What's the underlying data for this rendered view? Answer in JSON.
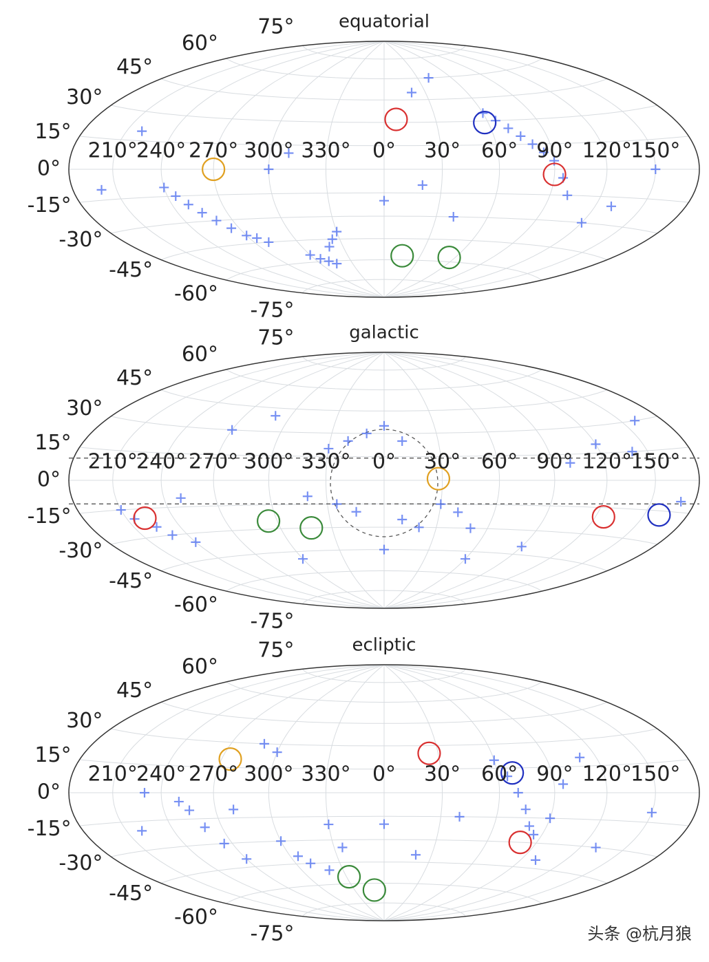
{
  "chart_data": [
    {
      "type": "scatter",
      "projection": "hammer",
      "title": "equatorial",
      "grid": true,
      "xticks": [
        {
          "value": 210,
          "label": "210°"
        },
        {
          "value": 240,
          "label": "240°"
        },
        {
          "value": 270,
          "label": "270°"
        },
        {
          "value": 300,
          "label": "300°"
        },
        {
          "value": 330,
          "label": "330°"
        },
        {
          "value": 0,
          "label": "0°"
        },
        {
          "value": 30,
          "label": "30°"
        },
        {
          "value": 60,
          "label": "60°"
        },
        {
          "value": 90,
          "label": "90°"
        },
        {
          "value": 120,
          "label": "120°"
        },
        {
          "value": 150,
          "label": "150°"
        }
      ],
      "yticks": [
        {
          "value": -75,
          "label": "-75°"
        },
        {
          "value": -60,
          "label": "-60°"
        },
        {
          "value": -45,
          "label": "-45°"
        },
        {
          "value": -30,
          "label": "-30°"
        },
        {
          "value": -15,
          "label": "-15°"
        },
        {
          "value": 0,
          "label": "0°"
        },
        {
          "value": 15,
          "label": "15°"
        },
        {
          "value": 30,
          "label": "30°"
        },
        {
          "value": 45,
          "label": "45°"
        },
        {
          "value": 60,
          "label": "60°"
        },
        {
          "value": 75,
          "label": "75°"
        }
      ],
      "series": [
        {
          "color": "#4a6cf0",
          "marker": "+",
          "x": [
            240,
            245,
            250,
            255,
            260,
            265,
            270,
            275,
            280,
            300,
            305,
            310,
            315,
            320,
            325,
            330,
            60,
            65,
            70,
            75,
            80,
            85,
            90,
            95,
            100,
            0,
            20,
            40,
            120,
            130,
            150,
            300,
            310,
            20,
            40,
            200,
            220
          ],
          "values": [
            -10,
            -15,
            -20,
            -25,
            -30,
            -35,
            -40,
            -42,
            -45,
            -55,
            -58,
            -60,
            -62,
            -50,
            -45,
            -40,
            35,
            30,
            25,
            20,
            15,
            10,
            5,
            -5,
            -15,
            -20,
            -10,
            -30,
            -30,
            -20,
            0,
            0,
            10,
            50,
            60,
            -10,
            20
          ]
        },
        {
          "color": "#d93030",
          "marker": "o",
          "x": [
            7,
            90
          ],
          "values": [
            32,
            -3
          ]
        },
        {
          "color": "#2030c0",
          "marker": "o",
          "x": [
            58
          ],
          "values": [
            29
          ]
        },
        {
          "color": "#e0a020",
          "marker": "o",
          "x": [
            270
          ],
          "values": [
            0
          ]
        },
        {
          "color": "#3a8a3a",
          "marker": "o",
          "x": [
            15,
            55
          ],
          "values": [
            -57,
            -57
          ]
        }
      ]
    },
    {
      "type": "scatter",
      "projection": "hammer",
      "title": "galactic",
      "grid": true,
      "xticks": [
        {
          "value": 210,
          "label": "210°"
        },
        {
          "value": 240,
          "label": "240°"
        },
        {
          "value": 270,
          "label": "270°"
        },
        {
          "value": 300,
          "label": "300°"
        },
        {
          "value": 330,
          "label": "330°"
        },
        {
          "value": 0,
          "label": "0°"
        },
        {
          "value": 30,
          "label": "30°"
        },
        {
          "value": 60,
          "label": "60°"
        },
        {
          "value": 90,
          "label": "90°"
        },
        {
          "value": 120,
          "label": "120°"
        },
        {
          "value": 150,
          "label": "150°"
        }
      ],
      "yticks": [
        {
          "value": -75,
          "label": "-75°"
        },
        {
          "value": -60,
          "label": "-60°"
        },
        {
          "value": -45,
          "label": "-45°"
        },
        {
          "value": -30,
          "label": "-30°"
        },
        {
          "value": -15,
          "label": "-15°"
        },
        {
          "value": 0,
          "label": "0°"
        },
        {
          "value": 15,
          "label": "15°"
        },
        {
          "value": 30,
          "label": "30°"
        },
        {
          "value": 45,
          "label": "45°"
        },
        {
          "value": 60,
          "label": "60°"
        },
        {
          "value": 75,
          "label": "75°"
        }
      ],
      "series": [
        {
          "color": "#4a6cf0",
          "marker": "+",
          "x": [
            330,
            340,
            350,
            0,
            10,
            320,
            335,
            345,
            10,
            20,
            30,
            40,
            50,
            210,
            215,
            225,
            230,
            240,
            250,
            270,
            290,
            100,
            120,
            140,
            160,
            170,
            90,
            60,
            300,
            0
          ],
          "values": [
            20,
            25,
            30,
            35,
            25,
            -10,
            -15,
            -20,
            -25,
            -30,
            -15,
            -20,
            -30,
            -15,
            -20,
            -25,
            -30,
            -35,
            -10,
            30,
            40,
            10,
            20,
            15,
            30,
            -10,
            -40,
            -50,
            -50,
            -45
          ]
        },
        {
          "color": "#e0a020",
          "marker": "o",
          "x": [
            28
          ],
          "values": [
            1
          ]
        },
        {
          "color": "#d93030",
          "marker": "o",
          "x": [
            125,
            222
          ],
          "values": [
            -20,
            -20
          ]
        },
        {
          "color": "#2030c0",
          "marker": "o",
          "x": [
            160
          ],
          "values": [
            -17
          ]
        },
        {
          "color": "#3a8a3a",
          "marker": "o",
          "x": [
            295,
            318
          ],
          "values": [
            -25,
            -30
          ]
        }
      ]
    },
    {
      "type": "scatter",
      "projection": "hammer",
      "title": "ecliptic",
      "grid": true,
      "xticks": [
        {
          "value": 210,
          "label": "210°"
        },
        {
          "value": 240,
          "label": "240°"
        },
        {
          "value": 270,
          "label": "270°"
        },
        {
          "value": 300,
          "label": "300°"
        },
        {
          "value": 330,
          "label": "330°"
        },
        {
          "value": 0,
          "label": "0°"
        },
        {
          "value": 30,
          "label": "30°"
        },
        {
          "value": 60,
          "label": "60°"
        },
        {
          "value": 90,
          "label": "90°"
        },
        {
          "value": 120,
          "label": "120°"
        },
        {
          "value": 150,
          "label": "150°"
        }
      ],
      "yticks": [
        {
          "value": -75,
          "label": "-75°"
        },
        {
          "value": -60,
          "label": "-60°"
        },
        {
          "value": -45,
          "label": "-45°"
        },
        {
          "value": -30,
          "label": "-30°"
        },
        {
          "value": -15,
          "label": "-15°"
        },
        {
          "value": 0,
          "label": "0°"
        },
        {
          "value": 15,
          "label": "15°"
        },
        {
          "value": 30,
          "label": "30°"
        },
        {
          "value": 45,
          "label": "45°"
        },
        {
          "value": 60,
          "label": "60°"
        },
        {
          "value": 75,
          "label": "75°"
        }
      ],
      "series": [
        {
          "color": "#4a6cf0",
          "marker": "+",
          "x": [
            250,
            255,
            260,
            265,
            270,
            280,
            300,
            305,
            310,
            320,
            330,
            335,
            60,
            65,
            70,
            75,
            80,
            85,
            90,
            95,
            100,
            110,
            130,
            150,
            0,
            20,
            40,
            290,
            300,
            230,
            220
          ],
          "values": [
            -5,
            -10,
            -20,
            -30,
            -40,
            -10,
            -30,
            -40,
            -45,
            -50,
            -20,
            -35,
            20,
            10,
            0,
            -10,
            -20,
            -25,
            -15,
            5,
            -40,
            20,
            -30,
            -10,
            -20,
            -40,
            -15,
            30,
            25,
            0,
            -20
          ]
        },
        {
          "color": "#d93030",
          "marker": "o",
          "x": [
            25,
            80
          ],
          "values": [
            25,
            -30
          ]
        },
        {
          "color": "#e0a020",
          "marker": "o",
          "x": [
            275
          ],
          "values": [
            20
          ]
        },
        {
          "color": "#2030c0",
          "marker": "o",
          "x": [
            68
          ],
          "values": [
            12
          ]
        },
        {
          "color": "#3a8a3a",
          "marker": "o",
          "x": [
            332,
            350
          ],
          "values": [
            -55,
            -65
          ]
        }
      ]
    }
  ],
  "watermark": "头条 @杭月狼"
}
